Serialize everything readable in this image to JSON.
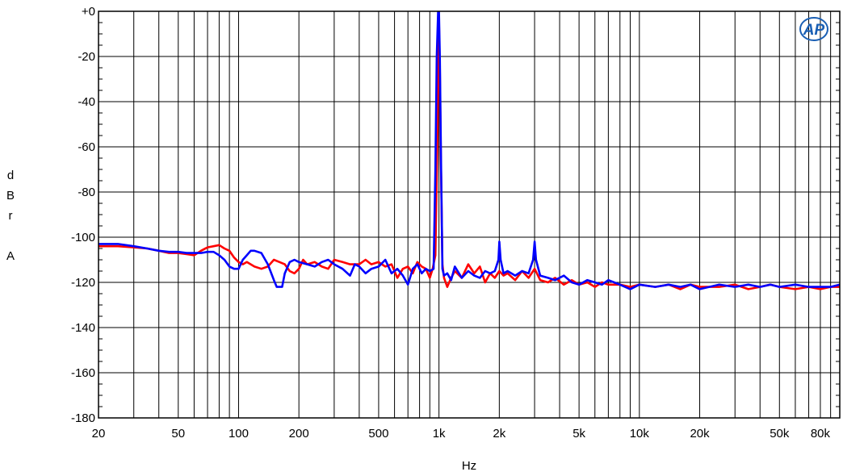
{
  "chart_data": {
    "type": "line",
    "xlabel": "Hz",
    "ylabel": "dBr A",
    "ylabel_lines": [
      "d",
      "B",
      "r",
      "",
      "A"
    ],
    "x_scale": "log",
    "xlim": [
      20,
      100000
    ],
    "ylim": [
      -180,
      0
    ],
    "grid": true,
    "x_ticks": [
      {
        "value": 20,
        "label": "20"
      },
      {
        "value": 50,
        "label": "50"
      },
      {
        "value": 100,
        "label": "100"
      },
      {
        "value": 200,
        "label": "200"
      },
      {
        "value": 500,
        "label": "500"
      },
      {
        "value": 1000,
        "label": "1k"
      },
      {
        "value": 2000,
        "label": "2k"
      },
      {
        "value": 5000,
        "label": "5k"
      },
      {
        "value": 10000,
        "label": "10k"
      },
      {
        "value": 20000,
        "label": "20k"
      },
      {
        "value": 50000,
        "label": "50k"
      },
      {
        "value": 80000,
        "label": "80k"
      }
    ],
    "y_ticks": [
      {
        "value": 0,
        "label": "+0"
      },
      {
        "value": -20,
        "label": "-20"
      },
      {
        "value": -40,
        "label": "-40"
      },
      {
        "value": -60,
        "label": "-60"
      },
      {
        "value": -80,
        "label": "-80"
      },
      {
        "value": -100,
        "label": "-100"
      },
      {
        "value": -120,
        "label": "-120"
      },
      {
        "value": -140,
        "label": "-140"
      },
      {
        "value": -160,
        "label": "-160"
      },
      {
        "value": -180,
        "label": "-180"
      }
    ],
    "logo_text": "AP",
    "series": [
      {
        "color": "#ff0000",
        "points": [
          [
            20,
            -104
          ],
          [
            25,
            -104
          ],
          [
            30,
            -104.5
          ],
          [
            35,
            -105
          ],
          [
            40,
            -106
          ],
          [
            45,
            -107
          ],
          [
            50,
            -107
          ],
          [
            55,
            -107.5
          ],
          [
            60,
            -108
          ],
          [
            65,
            -106
          ],
          [
            70,
            -104.5
          ],
          [
            75,
            -104
          ],
          [
            80,
            -103.5
          ],
          [
            85,
            -105
          ],
          [
            90,
            -106
          ],
          [
            95,
            -109
          ],
          [
            100,
            -111
          ],
          [
            105,
            -112
          ],
          [
            110,
            -111
          ],
          [
            120,
            -113
          ],
          [
            130,
            -114
          ],
          [
            140,
            -113
          ],
          [
            150,
            -110
          ],
          [
            160,
            -111
          ],
          [
            170,
            -112
          ],
          [
            180,
            -115
          ],
          [
            190,
            -116
          ],
          [
            200,
            -114
          ],
          [
            210,
            -110
          ],
          [
            220,
            -112
          ],
          [
            240,
            -111
          ],
          [
            260,
            -113
          ],
          [
            280,
            -114
          ],
          [
            300,
            -110
          ],
          [
            330,
            -111
          ],
          [
            360,
            -112
          ],
          [
            400,
            -112
          ],
          [
            430,
            -110
          ],
          [
            460,
            -112
          ],
          [
            500,
            -111
          ],
          [
            540,
            -113
          ],
          [
            580,
            -112
          ],
          [
            620,
            -118
          ],
          [
            660,
            -114
          ],
          [
            700,
            -113
          ],
          [
            740,
            -116
          ],
          [
            780,
            -111
          ],
          [
            820,
            -113
          ],
          [
            860,
            -114
          ],
          [
            900,
            -118
          ],
          [
            930,
            -114
          ],
          [
            960,
            -108
          ],
          [
            980,
            -60
          ],
          [
            990,
            -25
          ],
          [
            1000,
            -5
          ],
          [
            1010,
            -25
          ],
          [
            1020,
            -60
          ],
          [
            1040,
            -112
          ],
          [
            1060,
            -118
          ],
          [
            1100,
            -122
          ],
          [
            1150,
            -118
          ],
          [
            1200,
            -115
          ],
          [
            1300,
            -118
          ],
          [
            1400,
            -112
          ],
          [
            1500,
            -116
          ],
          [
            1600,
            -113
          ],
          [
            1700,
            -120
          ],
          [
            1800,
            -116
          ],
          [
            1900,
            -118
          ],
          [
            2000,
            -115
          ],
          [
            2100,
            -117
          ],
          [
            2200,
            -116
          ],
          [
            2400,
            -119
          ],
          [
            2600,
            -115
          ],
          [
            2800,
            -118
          ],
          [
            3000,
            -114
          ],
          [
            3200,
            -119
          ],
          [
            3500,
            -120
          ],
          [
            3800,
            -118
          ],
          [
            4200,
            -121
          ],
          [
            4600,
            -119
          ],
          [
            5000,
            -121
          ],
          [
            5500,
            -120
          ],
          [
            6000,
            -122
          ],
          [
            6500,
            -120
          ],
          [
            7000,
            -121
          ],
          [
            8000,
            -121
          ],
          [
            9000,
            -122
          ],
          [
            10000,
            -121
          ],
          [
            12000,
            -122
          ],
          [
            14000,
            -121
          ],
          [
            16000,
            -123
          ],
          [
            18000,
            -121
          ],
          [
            20000,
            -122
          ],
          [
            25000,
            -122
          ],
          [
            30000,
            -121
          ],
          [
            35000,
            -123
          ],
          [
            40000,
            -122
          ],
          [
            45000,
            -121
          ],
          [
            50000,
            -122
          ],
          [
            60000,
            -123
          ],
          [
            70000,
            -122
          ],
          [
            80000,
            -123
          ],
          [
            90000,
            -122
          ],
          [
            100000,
            -122
          ]
        ]
      },
      {
        "color": "#0000ff",
        "points": [
          [
            20,
            -103
          ],
          [
            25,
            -103
          ],
          [
            30,
            -104
          ],
          [
            35,
            -105
          ],
          [
            40,
            -106
          ],
          [
            45,
            -106.5
          ],
          [
            50,
            -106.5
          ],
          [
            55,
            -107
          ],
          [
            60,
            -107
          ],
          [
            65,
            -107
          ],
          [
            70,
            -106.5
          ],
          [
            75,
            -106.5
          ],
          [
            80,
            -108
          ],
          [
            85,
            -110
          ],
          [
            90,
            -113
          ],
          [
            95,
            -114
          ],
          [
            100,
            -114
          ],
          [
            105,
            -110
          ],
          [
            110,
            -108
          ],
          [
            115,
            -106
          ],
          [
            120,
            -106
          ],
          [
            130,
            -107
          ],
          [
            140,
            -112
          ],
          [
            150,
            -119
          ],
          [
            155,
            -122
          ],
          [
            165,
            -122
          ],
          [
            170,
            -116
          ],
          [
            180,
            -111
          ],
          [
            190,
            -110
          ],
          [
            200,
            -111
          ],
          [
            220,
            -112
          ],
          [
            240,
            -113
          ],
          [
            260,
            -111
          ],
          [
            280,
            -110
          ],
          [
            300,
            -112
          ],
          [
            330,
            -114
          ],
          [
            360,
            -117
          ],
          [
            380,
            -112
          ],
          [
            400,
            -113
          ],
          [
            430,
            -116
          ],
          [
            460,
            -114
          ],
          [
            500,
            -113
          ],
          [
            540,
            -110
          ],
          [
            580,
            -116
          ],
          [
            620,
            -114
          ],
          [
            660,
            -117
          ],
          [
            700,
            -121
          ],
          [
            740,
            -114
          ],
          [
            780,
            -112
          ],
          [
            820,
            -116
          ],
          [
            860,
            -114
          ],
          [
            900,
            -115
          ],
          [
            940,
            -114
          ],
          [
            960,
            -70
          ],
          [
            975,
            -20
          ],
          [
            990,
            0
          ],
          [
            1000,
            0
          ],
          [
            1010,
            -20
          ],
          [
            1025,
            -70
          ],
          [
            1040,
            -114
          ],
          [
            1060,
            -117
          ],
          [
            1100,
            -116
          ],
          [
            1150,
            -119
          ],
          [
            1200,
            -113
          ],
          [
            1300,
            -118
          ],
          [
            1400,
            -115
          ],
          [
            1500,
            -117
          ],
          [
            1600,
            -118
          ],
          [
            1700,
            -115
          ],
          [
            1800,
            -116
          ],
          [
            1900,
            -115
          ],
          [
            1980,
            -110
          ],
          [
            2000,
            -102
          ],
          [
            2030,
            -110
          ],
          [
            2100,
            -116
          ],
          [
            2200,
            -115
          ],
          [
            2400,
            -117
          ],
          [
            2600,
            -115
          ],
          [
            2800,
            -116
          ],
          [
            2950,
            -110
          ],
          [
            3000,
            -102
          ],
          [
            3050,
            -110
          ],
          [
            3200,
            -117
          ],
          [
            3500,
            -118
          ],
          [
            3800,
            -119
          ],
          [
            4200,
            -117
          ],
          [
            4600,
            -120
          ],
          [
            5000,
            -121
          ],
          [
            5500,
            -119
          ],
          [
            6000,
            -120
          ],
          [
            6500,
            -121
          ],
          [
            7000,
            -119
          ],
          [
            8000,
            -121
          ],
          [
            9000,
            -123
          ],
          [
            10000,
            -121
          ],
          [
            12000,
            -122
          ],
          [
            14000,
            -121
          ],
          [
            16000,
            -122
          ],
          [
            18000,
            -121
          ],
          [
            20000,
            -123
          ],
          [
            25000,
            -121
          ],
          [
            30000,
            -122
          ],
          [
            35000,
            -121
          ],
          [
            40000,
            -122
          ],
          [
            45000,
            -121
          ],
          [
            50000,
            -122
          ],
          [
            60000,
            -121
          ],
          [
            70000,
            -122
          ],
          [
            80000,
            -122
          ],
          [
            90000,
            -122
          ],
          [
            100000,
            -121
          ]
        ]
      }
    ]
  }
}
